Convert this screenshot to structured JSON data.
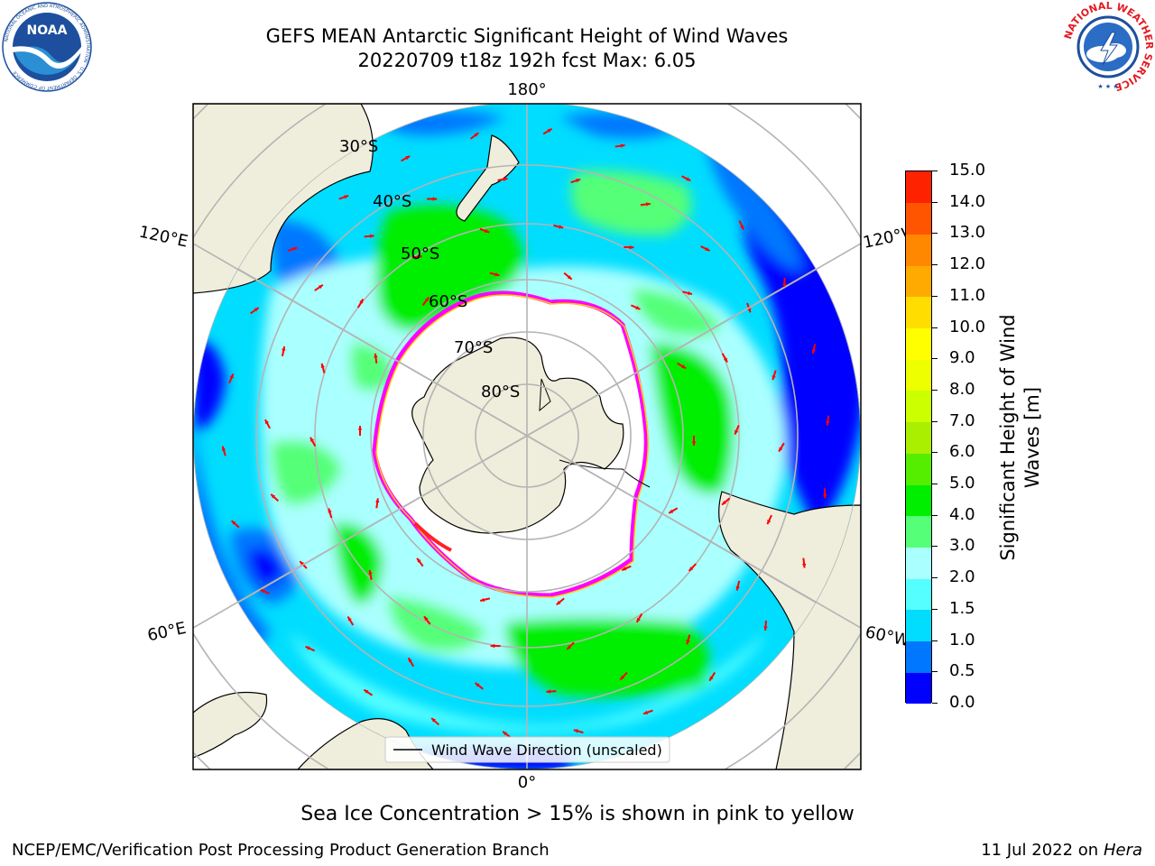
{
  "header": {
    "title_line1": "GEFS MEAN Antarctic Significant Height of Wind Waves",
    "title_line2": "20220709 t18z 192h fcst   Max: 6.05"
  },
  "logos": {
    "noaa_text": "NOAA",
    "noaa_ring_text": "NATIONAL OCEANIC AND ATMOSPHERIC ADMINISTRATION · U.S. DEPARTMENT OF COMMERCE",
    "nws_ring_text": "NATIONAL WEATHER SERVICE"
  },
  "map": {
    "projection": "south-polar-stereographic",
    "longitude_labels": {
      "top": "180°",
      "bottom": "0°",
      "left_upper": "120°E",
      "left_lower": "60°E",
      "right_upper": "120°W",
      "right_lower": "60°W"
    },
    "latitude_labels": [
      "30°S",
      "40°S",
      "50°S",
      "60°S",
      "70°S",
      "80°S"
    ],
    "legend": {
      "label": "Wind Wave Direction (unscaled)"
    },
    "arrow_color": "#ff0000",
    "land_color": "#efeedc",
    "ice_edge_colors": [
      "#ff00ff",
      "#ff66cc",
      "#ffcc00"
    ]
  },
  "colorbar": {
    "label": "Significant Height of Wind Waves [m]",
    "ticks": [
      "0.0",
      "0.5",
      "1.0",
      "1.5",
      "2.0",
      "3.0",
      "4.0",
      "5.0",
      "6.0",
      "7.0",
      "8.0",
      "9.0",
      "10.0",
      "11.0",
      "12.0",
      "13.0",
      "14.0",
      "15.0"
    ],
    "colors": [
      "#0000ff",
      "#0077ff",
      "#00ddff",
      "#55ffff",
      "#aaffff",
      "#55ff77",
      "#00ee00",
      "#55ee00",
      "#aaee00",
      "#ccff00",
      "#eeff00",
      "#ffff00",
      "#ffdd00",
      "#ffaa00",
      "#ff8800",
      "#ff5500",
      "#ff2200"
    ]
  },
  "caption": "Sea Ice Concentration > 15% is shown in pink to yellow",
  "footer": {
    "left": "NCEP/EMC/Verification Post Processing Product Generation Branch",
    "right_date": "11 Jul 2022 on",
    "right_host": "Hera"
  }
}
